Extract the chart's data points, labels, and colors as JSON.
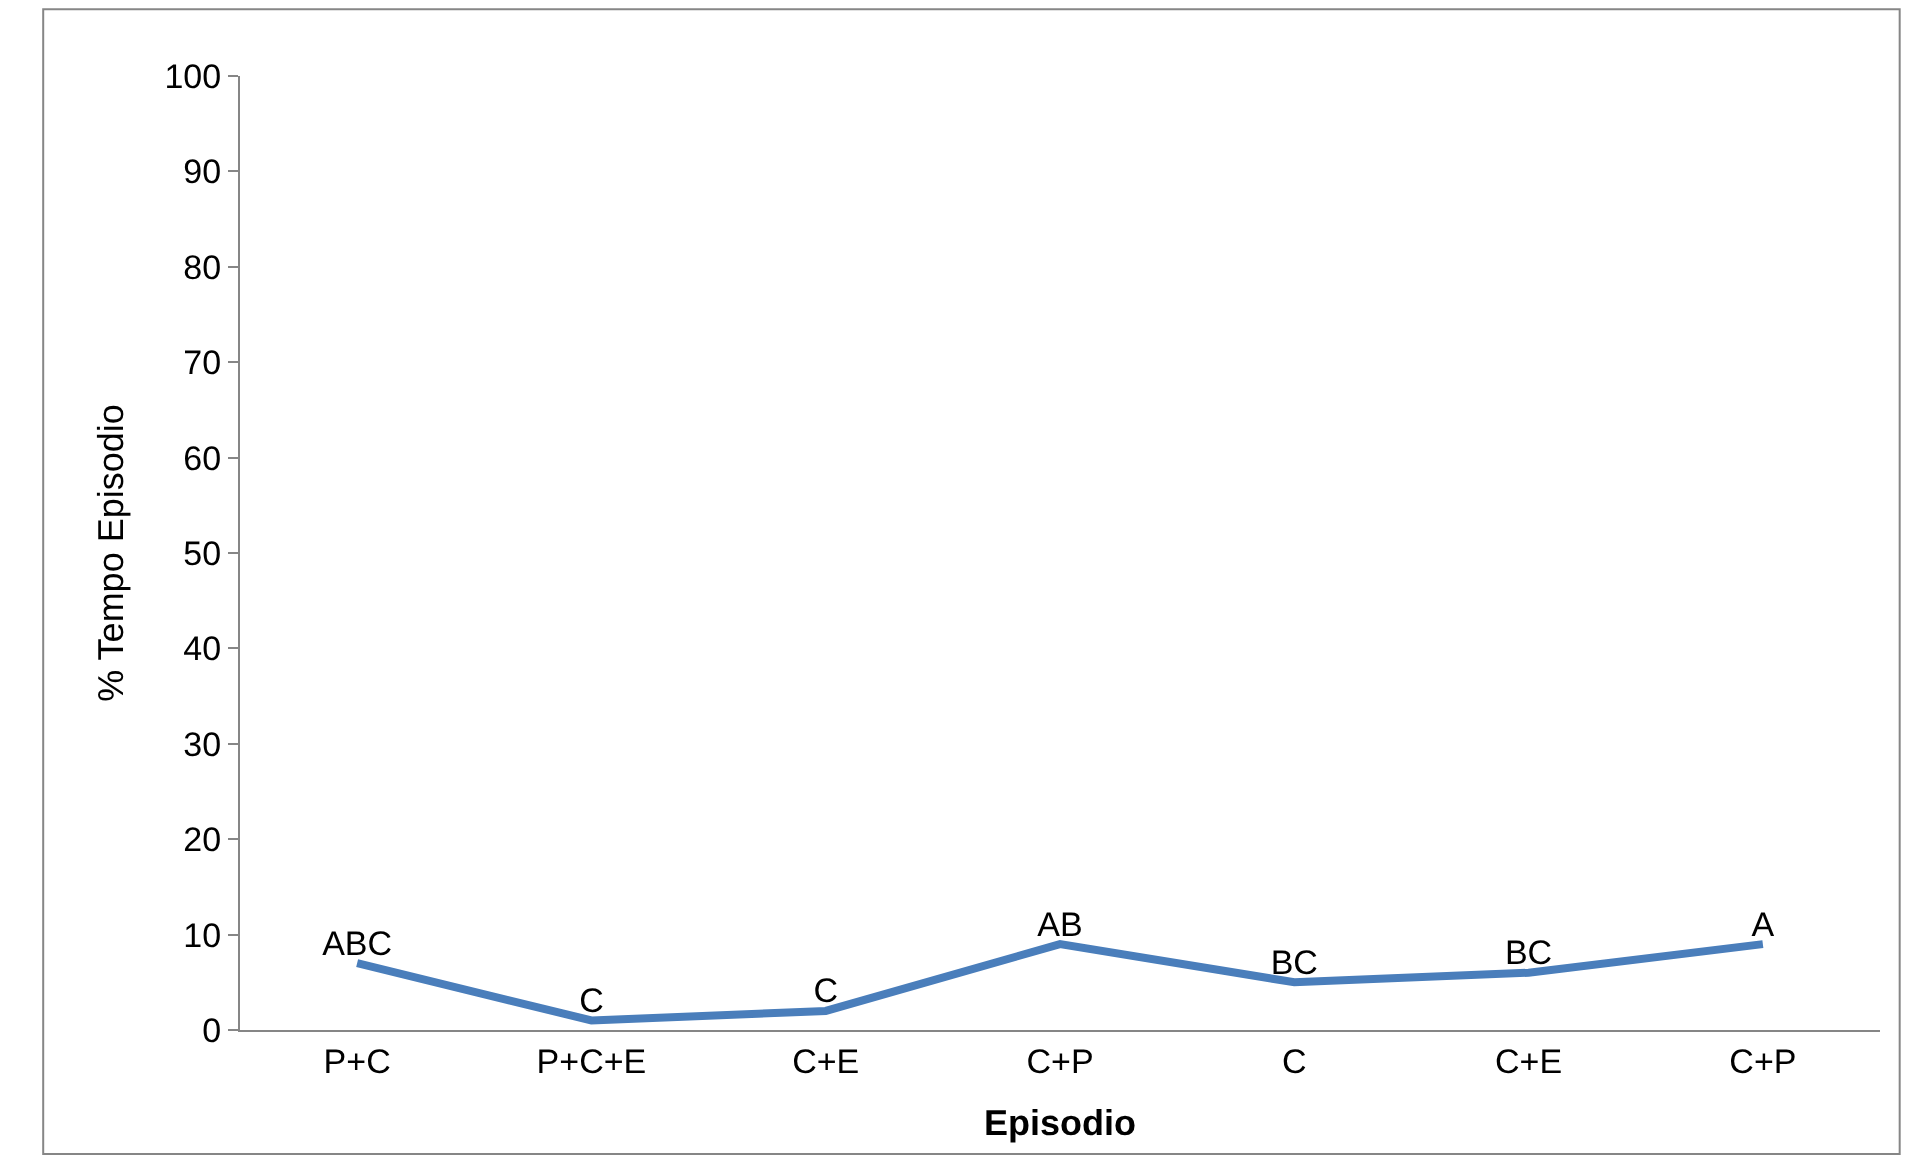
{
  "chart_data": {
    "type": "line",
    "xlabel": "Episodio",
    "ylabel": "% Tempo Episodio",
    "categories": [
      "P+C",
      "P+C+E",
      "C+E",
      "C+P",
      "C",
      "C+E",
      "C+P"
    ],
    "series": [
      {
        "color": "#4a7ebb",
        "values": [
          7,
          1,
          2,
          9,
          5,
          6,
          9
        ],
        "value_labels": [
          "ABC",
          "C",
          "C",
          "AB",
          "BC",
          "BC",
          "A"
        ]
      }
    ],
    "ylim": [
      0,
      100
    ],
    "yticks": [
      0,
      10,
      20,
      30,
      40,
      50,
      60,
      70,
      80,
      90,
      100
    ],
    "marker": "none",
    "line_style": "solid"
  }
}
